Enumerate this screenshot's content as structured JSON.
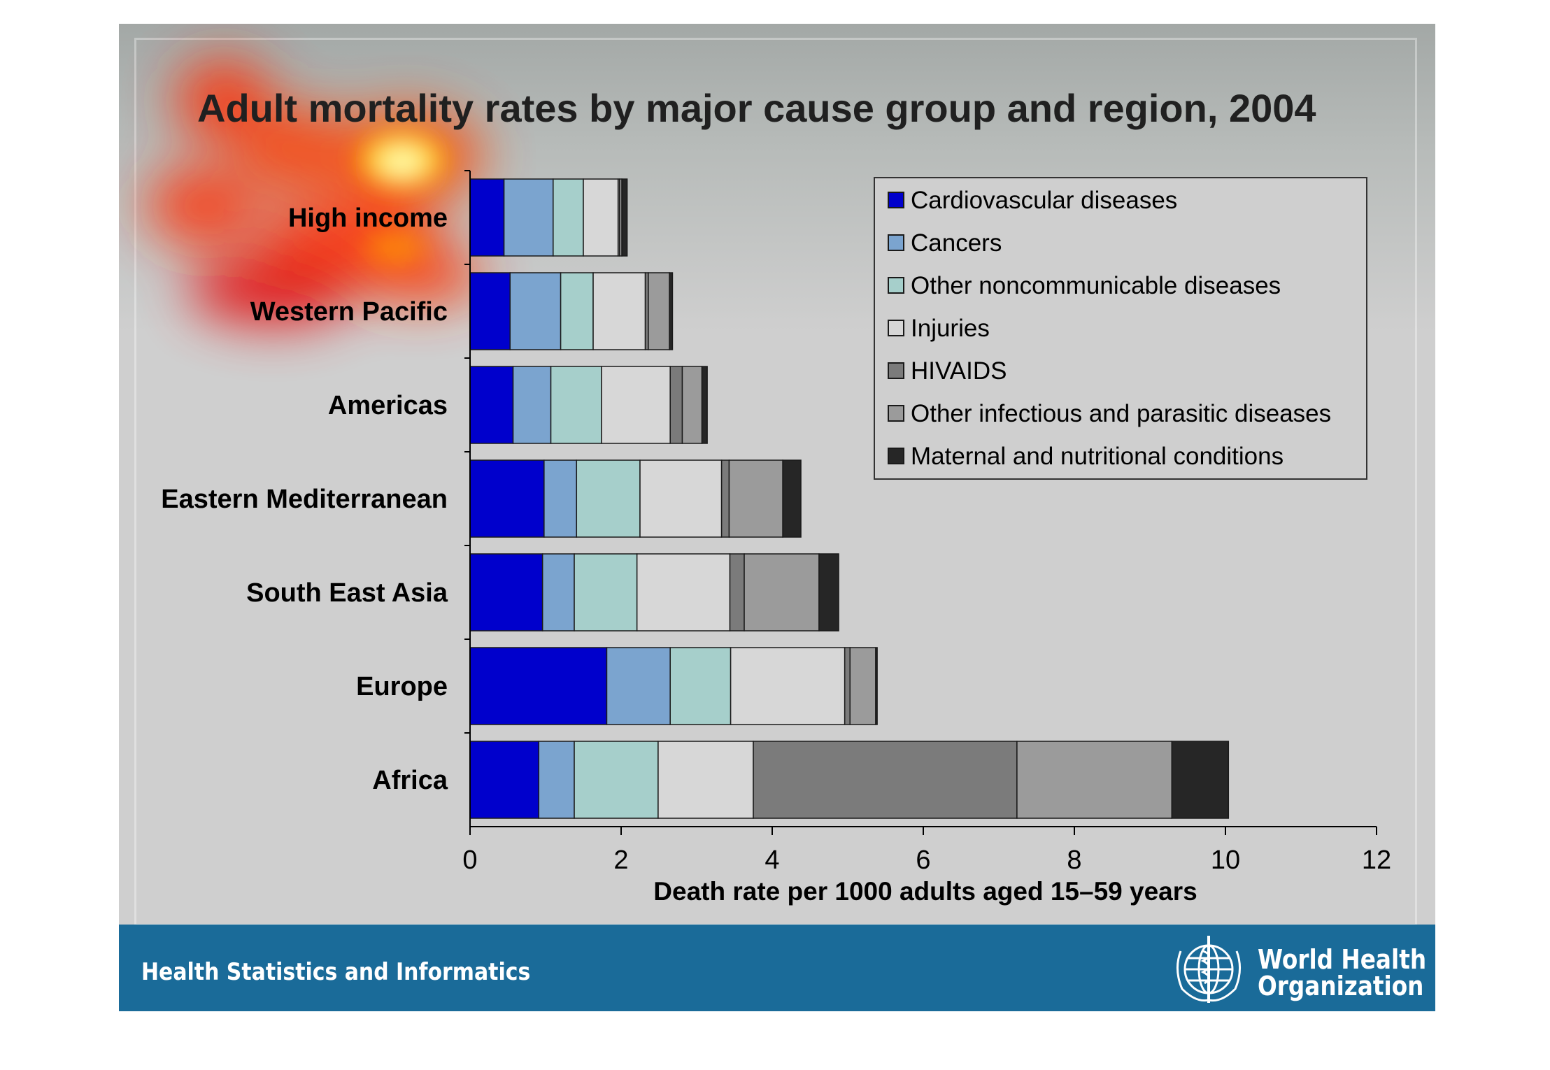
{
  "chart_data": {
    "type": "bar",
    "orientation": "horizontal",
    "stacked": true,
    "title": "Adult mortality rates by major cause group and region, 2004",
    "xlabel": "Death rate per 1000 adults aged 15–59 years",
    "ylabel": "",
    "xlim": [
      0,
      12
    ],
    "xticks": [
      "0",
      "2",
      "4",
      "6",
      "8",
      "10",
      "12"
    ],
    "categories": [
      "High income",
      "Western Pacific",
      "Americas",
      "Eastern Mediterranean",
      "South East Asia",
      "Europe",
      "Africa"
    ],
    "series": [
      {
        "name": "Cardiovascular diseases",
        "color": "#0000cc",
        "values": [
          0.45,
          0.53,
          0.57,
          0.98,
          0.96,
          1.81,
          0.91
        ]
      },
      {
        "name": "Cancers",
        "color": "#7ba4cf",
        "values": [
          0.65,
          0.67,
          0.5,
          0.43,
          0.42,
          0.84,
          0.47
        ]
      },
      {
        "name": "Other noncommunicable diseases",
        "color": "#a6cfcb",
        "values": [
          0.4,
          0.43,
          0.67,
          0.84,
          0.83,
          0.8,
          1.11
        ]
      },
      {
        "name": "Injuries",
        "color": "#d7d7d7",
        "values": [
          0.46,
          0.69,
          0.91,
          1.08,
          1.23,
          1.51,
          1.26
        ]
      },
      {
        "name": "HIVAIDS",
        "color": "#7b7b7b",
        "values": [
          0.02,
          0.04,
          0.16,
          0.1,
          0.19,
          0.07,
          3.49
        ]
      },
      {
        "name": "Other infectious and parasitic diseases",
        "color": "#9b9b9b",
        "values": [
          0.03,
          0.28,
          0.26,
          0.71,
          0.99,
          0.34,
          2.05
        ]
      },
      {
        "name": "Maternal and nutritional conditions",
        "color": "#262626",
        "values": [
          0.07,
          0.04,
          0.07,
          0.24,
          0.26,
          0.02,
          0.75
        ]
      }
    ],
    "legend_position": "top-right",
    "grid": false
  },
  "footer": {
    "section": "Health Statistics and Informatics",
    "org_line1": "World Health",
    "org_line2": "Organization"
  },
  "icons": {
    "logo": "who-emblem-icon"
  },
  "colors": {
    "footer_bg": "#1a6b99",
    "plot_bg": "#cfcfcf"
  }
}
